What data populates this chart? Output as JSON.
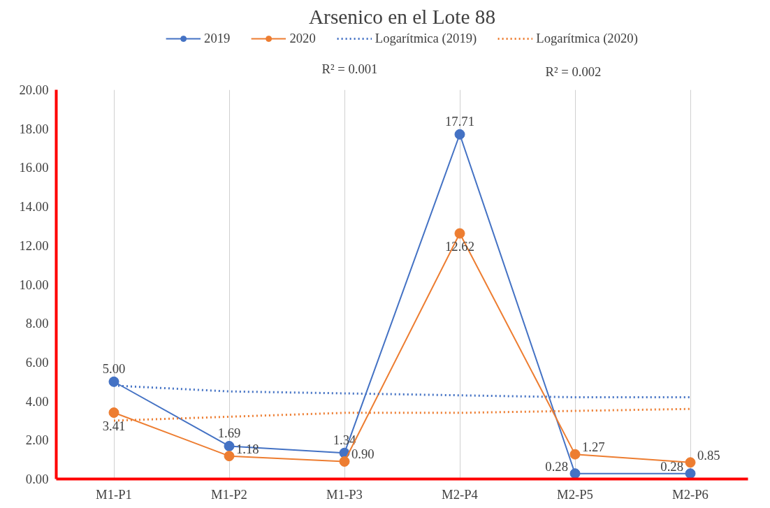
{
  "chart_data": {
    "type": "line",
    "title": "Arsenico en el Lote 88",
    "categories": [
      "M1-P1",
      "M1-P2",
      "M1-P3",
      "M2-P4",
      "M2-P5",
      "M2-P6"
    ],
    "series": [
      {
        "name": "2019",
        "color": "#4472c4",
        "values": [
          5.0,
          1.69,
          1.34,
          17.71,
          0.28,
          0.28
        ],
        "marker": "circle",
        "line_style": "solid",
        "value_labels": [
          "5.00",
          "1.69",
          "1.34",
          "17.71",
          "0.28",
          "0.28"
        ]
      },
      {
        "name": "2020",
        "color": "#ed7d31",
        "values": [
          3.41,
          1.18,
          0.9,
          12.62,
          1.27,
          0.85
        ],
        "marker": "circle",
        "line_style": "solid",
        "value_labels": [
          "3.41",
          "1.18",
          "0.90",
          "12.62",
          "1.27",
          "0.85"
        ]
      },
      {
        "name": "Logarítmica (2019)",
        "color": "#4472c4",
        "values": [
          4.8,
          4.5,
          4.4,
          4.3,
          4.2,
          4.2
        ],
        "marker": "none",
        "line_style": "dotted"
      },
      {
        "name": "Logarítmica (2020)",
        "color": "#ed7d31",
        "values": [
          3.0,
          3.2,
          3.4,
          3.4,
          3.5,
          3.6
        ],
        "marker": "none",
        "line_style": "dotted"
      }
    ],
    "annotations": [
      "R² = 0.001",
      "R² = 0.002"
    ],
    "ylim": [
      0,
      20
    ],
    "yticks": [
      {
        "value": 0,
        "label": "0.00"
      },
      {
        "value": 2,
        "label": "2.00"
      },
      {
        "value": 4,
        "label": "4.00"
      },
      {
        "value": 6,
        "label": "6.00"
      },
      {
        "value": 8,
        "label": "8.00"
      },
      {
        "value": 10,
        "label": "10.00"
      },
      {
        "value": 12,
        "label": "12.00"
      },
      {
        "value": 14,
        "label": "14.00"
      },
      {
        "value": 16,
        "label": "16.00"
      },
      {
        "value": 18,
        "label": "18.00"
      },
      {
        "value": 20,
        "label": "20.00"
      }
    ],
    "grid": "x",
    "legend": "top"
  }
}
